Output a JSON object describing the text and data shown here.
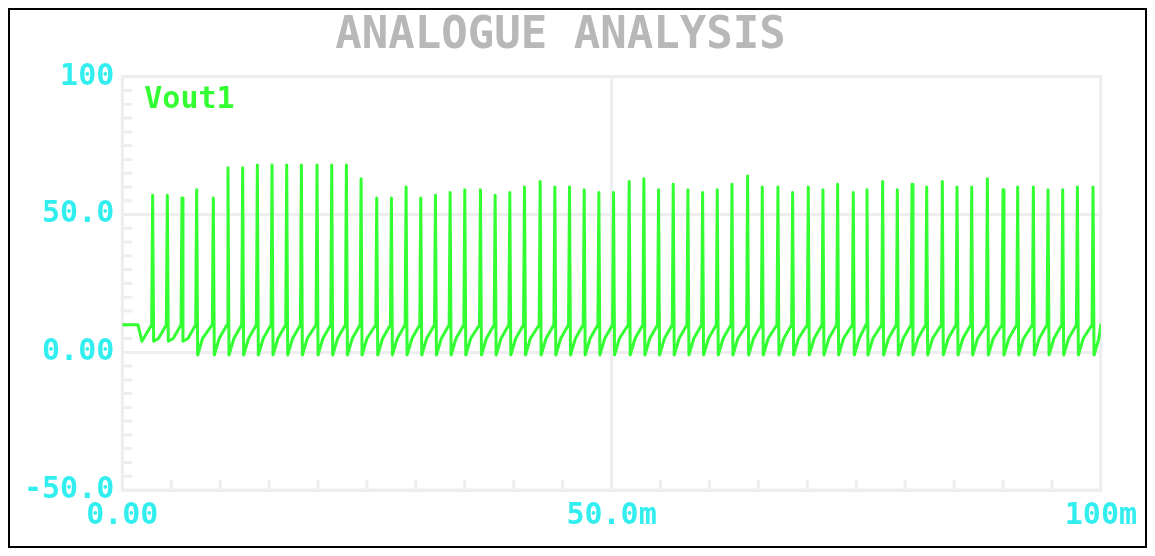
{
  "chart_data": {
    "type": "line",
    "title": "ANALOGUE ANALYSIS",
    "xlim": [
      0,
      100
    ],
    "ylim": [
      -50,
      100
    ],
    "xticks": [
      {
        "value": 0,
        "label": "0.00"
      },
      {
        "value": 5,
        "label": null
      },
      {
        "value": 10,
        "label": null
      },
      {
        "value": 15,
        "label": null
      },
      {
        "value": 20,
        "label": null
      },
      {
        "value": 25,
        "label": null
      },
      {
        "value": 30,
        "label": null
      },
      {
        "value": 35,
        "label": null
      },
      {
        "value": 40,
        "label": null
      },
      {
        "value": 45,
        "label": null
      },
      {
        "value": 50,
        "label": "50.0m"
      },
      {
        "value": 55,
        "label": null
      },
      {
        "value": 60,
        "label": null
      },
      {
        "value": 65,
        "label": null
      },
      {
        "value": 70,
        "label": null
      },
      {
        "value": 75,
        "label": null
      },
      {
        "value": 80,
        "label": null
      },
      {
        "value": 85,
        "label": null
      },
      {
        "value": 90,
        "label": null
      },
      {
        "value": 95,
        "label": null
      },
      {
        "value": 100,
        "label": "100m"
      }
    ],
    "yticks": [
      {
        "value": -50,
        "label": "-50.0"
      },
      {
        "value": -45,
        "label": null
      },
      {
        "value": -40,
        "label": null
      },
      {
        "value": -35,
        "label": null
      },
      {
        "value": -30,
        "label": null
      },
      {
        "value": -25,
        "label": null
      },
      {
        "value": -20,
        "label": null
      },
      {
        "value": -15,
        "label": null
      },
      {
        "value": -10,
        "label": null
      },
      {
        "value": -5,
        "label": null
      },
      {
        "value": 0,
        "label": "0.00"
      },
      {
        "value": 5,
        "label": null
      },
      {
        "value": 10,
        "label": null
      },
      {
        "value": 15,
        "label": null
      },
      {
        "value": 20,
        "label": null
      },
      {
        "value": 25,
        "label": null
      },
      {
        "value": 30,
        "label": null
      },
      {
        "value": 35,
        "label": null
      },
      {
        "value": 40,
        "label": null
      },
      {
        "value": 45,
        "label": null
      },
      {
        "value": 50,
        "label": "50.0"
      },
      {
        "value": 55,
        "label": null
      },
      {
        "value": 60,
        "label": null
      },
      {
        "value": 65,
        "label": null
      },
      {
        "value": 70,
        "label": null
      },
      {
        "value": 75,
        "label": null
      },
      {
        "value": 80,
        "label": null
      },
      {
        "value": 85,
        "label": null
      },
      {
        "value": 90,
        "label": null
      },
      {
        "value": 95,
        "label": null
      },
      100
    ],
    "grid": true,
    "legend": "top left",
    "series": [
      {
        "name": "Vout1",
        "color": "#33ff33",
        "x": [
          0,
          1.6,
          2.0,
          3.0,
          3.1,
          3.2,
          3.7,
          4.5,
          4.6,
          4.7,
          5.2,
          6.0,
          6.1,
          6.2,
          6.7,
          7.5,
          7.6,
          7.7,
          8.2,
          9.2,
          9.3,
          9.4,
          9.9,
          10.7,
          10.8,
          10.9,
          11.4,
          12.2,
          12.3,
          12.4,
          12.9,
          13.7,
          13.8,
          13.9,
          14.4,
          15.2,
          15.3,
          15.4,
          15.9,
          16.7,
          16.8,
          16.9,
          17.4,
          18.2,
          18.3,
          18.4,
          18.9,
          19.8,
          19.9,
          20.0,
          20.5,
          21.3,
          21.4,
          21.5,
          22.0,
          22.8,
          22.9,
          23.0,
          23.5,
          24.3,
          24.4,
          24.5,
          25.0,
          25.9,
          26.0,
          26.1,
          26.6,
          27.4,
          27.5,
          27.6,
          28.1,
          28.9,
          29.0,
          29.1,
          29.6,
          30.4,
          30.5,
          30.6,
          31.1,
          31.9,
          32.0,
          32.1,
          32.6,
          33.4,
          33.5,
          33.6,
          34.1,
          34.9,
          35.0,
          35.1,
          35.6,
          36.5,
          36.6,
          36.7,
          37.2,
          38.0,
          38.1,
          38.2,
          38.7,
          39.5,
          39.6,
          39.7,
          40.2,
          41.0,
          41.1,
          41.2,
          41.7,
          42.6,
          42.7,
          42.8,
          43.3,
          44.1,
          44.2,
          44.3,
          44.8,
          45.6,
          45.7,
          45.8,
          46.3,
          47.1,
          47.2,
          47.3,
          47.8,
          48.6,
          48.7,
          48.8,
          49.3,
          50.1,
          50.2,
          50.3,
          50.8,
          51.7,
          51.8,
          51.9,
          52.4,
          53.2,
          53.3,
          53.4,
          53.9,
          54.7,
          54.8,
          54.9,
          55.4,
          56.2,
          56.3,
          56.4,
          56.9,
          57.7,
          57.8,
          57.9,
          58.4,
          59.2,
          59.3,
          59.4,
          59.9,
          60.7,
          60.8,
          60.9,
          61.4,
          62.2,
          62.3,
          62.4,
          62.9,
          63.8,
          63.9,
          64.0,
          64.5,
          65.3,
          65.4,
          65.5,
          66.0,
          66.9,
          67.0,
          67.1,
          67.6,
          68.4,
          68.5,
          68.6,
          69.1,
          70.0,
          70.1,
          70.2,
          70.7,
          71.5,
          71.6,
          71.7,
          72.2,
          73.0,
          73.1,
          73.2,
          73.7,
          74.6,
          74.7,
          74.8,
          75.3,
          76.0,
          76.1,
          76.2,
          76.7,
          77.6,
          77.7,
          77.8,
          78.3,
          79.1,
          79.2,
          79.3,
          79.8,
          80.6,
          80.7,
          80.8,
          81.3,
          82.1,
          82.2,
          82.3,
          82.8,
          83.7,
          83.8,
          83.9,
          84.4,
          85.2,
          85.3,
          85.4,
          85.9,
          86.7,
          86.8,
          86.9,
          87.4,
          88.3,
          88.4,
          88.5,
          89.0,
          89.9,
          90.0,
          90.1,
          90.6,
          91.4,
          91.5,
          91.6,
          92.1,
          93.0,
          93.1,
          93.2,
          93.7,
          94.5,
          94.6,
          94.7,
          95.2,
          96.0,
          96.1,
          96.2,
          96.7,
          97.5,
          97.6,
          97.7,
          98.2,
          99.1,
          99.2,
          99.3,
          99.8,
          100
        ],
        "values": [
          10,
          10,
          4,
          10,
          57,
          4,
          5,
          10,
          57,
          4,
          5,
          10,
          56,
          4,
          5,
          10,
          59,
          -1,
          5,
          10,
          56,
          -1,
          5,
          10,
          67,
          -1,
          5,
          10,
          67,
          -1,
          5,
          10,
          68,
          -1,
          5,
          10,
          68,
          -1,
          5,
          10,
          68,
          -1,
          5,
          10,
          68,
          -1,
          5,
          10,
          68,
          -1,
          5,
          10,
          68,
          -1,
          5,
          10,
          68,
          -1,
          5,
          10,
          63,
          -1,
          5,
          10,
          56,
          -1,
          5,
          10,
          56,
          -1,
          5,
          10,
          60,
          -1,
          5,
          10,
          56,
          -1,
          5,
          10,
          57,
          -1,
          5,
          10,
          58,
          -1,
          5,
          10,
          59,
          -1,
          5,
          10,
          59,
          -1,
          5,
          10,
          57,
          -1,
          5,
          10,
          58,
          -1,
          5,
          10,
          60,
          -1,
          5,
          10,
          62,
          -1,
          5,
          10,
          60,
          -1,
          5,
          10,
          60,
          -1,
          5,
          10,
          59,
          -1,
          5,
          10,
          58,
          -1,
          5,
          10,
          58,
          -1,
          5,
          10,
          62,
          -1,
          5,
          10,
          63,
          -1,
          5,
          10,
          59,
          -1,
          5,
          10,
          61,
          -1,
          5,
          10,
          59,
          -1,
          5,
          10,
          58,
          -1,
          5,
          10,
          59,
          -1,
          5,
          10,
          61,
          -1,
          5,
          10,
          64,
          -1,
          5,
          10,
          60,
          -1,
          5,
          10,
          60,
          -1,
          5,
          10,
          58,
          -1,
          5,
          10,
          60,
          -1,
          5,
          10,
          59,
          -1,
          5,
          10,
          61,
          -1,
          5,
          10,
          58,
          -1,
          5,
          10,
          59,
          -1,
          5,
          10,
          62,
          -1,
          5,
          10,
          59,
          -1,
          5,
          10,
          61,
          -1,
          5,
          10,
          60,
          -1,
          5,
          10,
          62,
          -1,
          5,
          10,
          60,
          -1,
          5,
          10,
          60,
          -1,
          5,
          10,
          63,
          -1,
          5,
          10,
          59,
          -1,
          5,
          10,
          60,
          -1,
          5,
          10,
          60,
          -1,
          5,
          10,
          59,
          -1,
          5,
          10,
          59,
          -1,
          5,
          10,
          60,
          -1,
          5,
          10,
          60,
          -1,
          5,
          10
        ]
      }
    ]
  }
}
